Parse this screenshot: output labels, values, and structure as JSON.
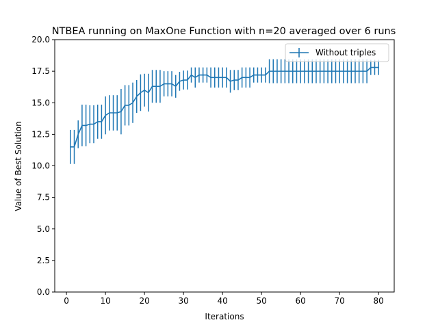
{
  "chart_data": {
    "type": "line",
    "title": "NTBEA running on MaxOne Function with n=20 averaged over 6 runs",
    "xlabel": "Iterations",
    "ylabel": "Value of Best Solution",
    "xlim": [
      -3,
      84
    ],
    "ylim": [
      0,
      20
    ],
    "xticks": [
      0,
      10,
      20,
      30,
      40,
      50,
      60,
      70,
      80
    ],
    "xtick_labels": [
      "0",
      "10",
      "20",
      "30",
      "40",
      "50",
      "60",
      "70",
      "80"
    ],
    "yticks": [
      0,
      2.5,
      5,
      7.5,
      10,
      12.5,
      15,
      17.5,
      20
    ],
    "ytick_labels": [
      "0.0",
      "2.5",
      "5.0",
      "7.5",
      "10.0",
      "12.5",
      "15.0",
      "17.5",
      "20.0"
    ],
    "grid": false,
    "legend": {
      "position": "top-right",
      "entries": [
        "Without triples"
      ]
    },
    "series": [
      {
        "name": "Without triples",
        "color": "#1f77b4",
        "error_bars": true,
        "x": [
          1,
          2,
          3,
          4,
          5,
          6,
          7,
          8,
          9,
          10,
          11,
          12,
          13,
          14,
          15,
          16,
          17,
          18,
          19,
          20,
          21,
          22,
          23,
          24,
          25,
          26,
          27,
          28,
          29,
          30,
          31,
          32,
          33,
          34,
          35,
          36,
          37,
          38,
          39,
          40,
          41,
          42,
          43,
          44,
          45,
          46,
          47,
          48,
          49,
          50,
          51,
          52,
          53,
          54,
          55,
          56,
          57,
          58,
          59,
          60,
          61,
          62,
          63,
          64,
          65,
          66,
          67,
          68,
          69,
          70,
          71,
          72,
          73,
          74,
          75,
          76,
          77,
          78,
          79,
          80
        ],
        "y": [
          11.5,
          11.5,
          12.5,
          13.2,
          13.2,
          13.3,
          13.3,
          13.5,
          13.5,
          14.0,
          14.2,
          14.2,
          14.2,
          14.3,
          14.8,
          14.8,
          15.0,
          15.5,
          15.8,
          16.0,
          15.8,
          16.3,
          16.3,
          16.3,
          16.5,
          16.5,
          16.5,
          16.3,
          16.7,
          16.8,
          16.8,
          17.2,
          17.0,
          17.2,
          17.2,
          17.2,
          17.0,
          17.0,
          17.0,
          17.0,
          17.0,
          16.7,
          16.8,
          16.8,
          17.0,
          17.0,
          17.0,
          17.2,
          17.2,
          17.2,
          17.2,
          17.5,
          17.5,
          17.5,
          17.5,
          17.5,
          17.5,
          17.5,
          17.5,
          17.5,
          17.5,
          17.5,
          17.5,
          17.5,
          17.5,
          17.5,
          17.5,
          17.5,
          17.5,
          17.5,
          17.5,
          17.5,
          17.5,
          17.5,
          17.5,
          17.5,
          17.5,
          17.8,
          17.8,
          17.8
        ],
        "err": [
          1.35,
          1.35,
          1.1,
          1.65,
          1.65,
          1.5,
          1.5,
          1.35,
          1.35,
          1.5,
          1.4,
          1.4,
          1.4,
          1.8,
          1.6,
          1.6,
          1.6,
          1.3,
          1.45,
          1.3,
          1.5,
          1.3,
          1.3,
          1.3,
          1.0,
          1.0,
          1.0,
          0.9,
          0.75,
          0.75,
          0.75,
          0.6,
          0.8,
          0.6,
          0.6,
          0.6,
          0.8,
          0.8,
          0.8,
          0.8,
          0.8,
          0.9,
          0.8,
          0.8,
          0.8,
          0.8,
          0.8,
          0.6,
          0.6,
          0.6,
          0.6,
          0.95,
          0.95,
          0.95,
          0.95,
          0.95,
          0.95,
          0.95,
          0.95,
          0.95,
          0.95,
          0.95,
          0.95,
          0.95,
          0.95,
          0.95,
          0.95,
          0.95,
          0.95,
          0.95,
          0.95,
          0.95,
          0.95,
          0.95,
          0.95,
          0.95,
          0.95,
          0.6,
          0.6,
          0.6
        ]
      }
    ]
  }
}
